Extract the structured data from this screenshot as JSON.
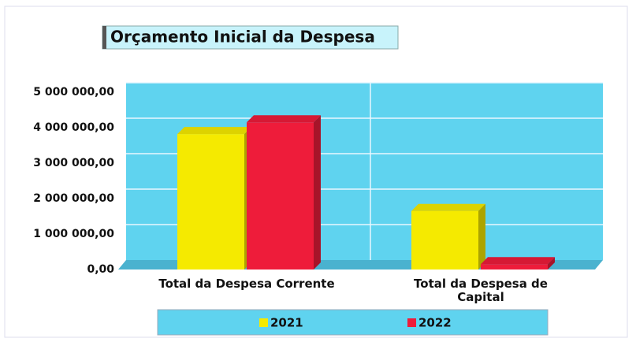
{
  "chart_data": {
    "type": "bar3d",
    "title": "Orçamento Inicial da Despesa",
    "categories": [
      "Total da Despesa Corrente",
      "Total da Despesa de Capital"
    ],
    "series": [
      {
        "name": "2021",
        "color": "#f5ea00",
        "values": [
          3820000,
          1650000
        ]
      },
      {
        "name": "2022",
        "color": "#ee1c3a",
        "values": [
          4150000,
          150000
        ]
      }
    ],
    "ylim": [
      0,
      5000000
    ],
    "yticks": [
      {
        "value": 0,
        "label": "0,00"
      },
      {
        "value": 1000000,
        "label": "1 000 000,00"
      },
      {
        "value": 2000000,
        "label": "2 000 000,00"
      },
      {
        "value": 3000000,
        "label": "3 000 000,00"
      },
      {
        "value": 4000000,
        "label": "4 000 000,00"
      },
      {
        "value": 5000000,
        "label": "5 000 000,00"
      }
    ],
    "grid": true,
    "legend": "bottom"
  }
}
